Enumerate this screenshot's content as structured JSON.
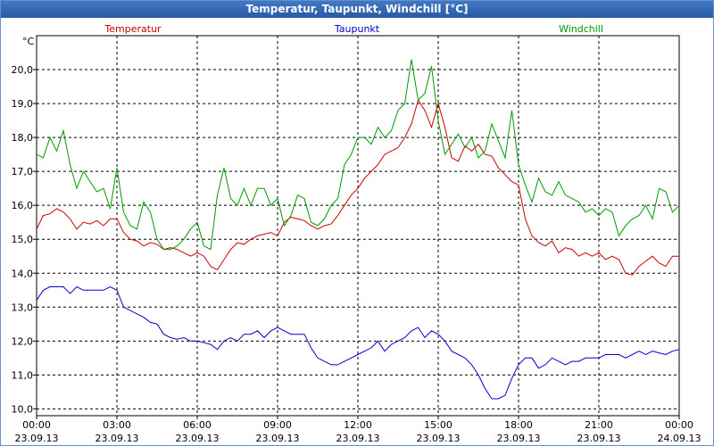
{
  "window": {
    "title": "Temperatur, Taupunkt, Windchill [°C]"
  },
  "chart_data": {
    "type": "line",
    "title": "Temperatur, Taupunkt, Windchill [°C]",
    "ylabel": "°C",
    "ylim": [
      9.8,
      21.0
    ],
    "xlim": [
      0,
      24
    ],
    "y_ticks": [
      10.0,
      11.0,
      12.0,
      13.0,
      14.0,
      15.0,
      16.0,
      17.0,
      18.0,
      19.0,
      20.0
    ],
    "y_tick_labels": [
      "10,0",
      "11,0",
      "12,0",
      "13,0",
      "14,0",
      "15,0",
      "16,0",
      "17,0",
      "18,0",
      "19,0",
      "20,0"
    ],
    "x_ticks": [
      0,
      3,
      6,
      9,
      12,
      15,
      18,
      21,
      24
    ],
    "x_tick_labels": [
      {
        "time": "00:00",
        "date": "23.09.13"
      },
      {
        "time": "03:00",
        "date": "23.09.13"
      },
      {
        "time": "06:00",
        "date": "23.09.13"
      },
      {
        "time": "09:00",
        "date": "23.09.13"
      },
      {
        "time": "12:00",
        "date": "23.09.13"
      },
      {
        "time": "15:00",
        "date": "23.09.13"
      },
      {
        "time": "18:00",
        "date": "23.09.13"
      },
      {
        "time": "21:00",
        "date": "23.09.13"
      },
      {
        "time": "00:00",
        "date": "24.09.13"
      }
    ],
    "grid": true,
    "series": [
      {
        "name": "Temperatur",
        "color": "#cc0000",
        "x": [
          0.0,
          0.25,
          0.5,
          0.75,
          1.0,
          1.25,
          1.5,
          1.75,
          2.0,
          2.25,
          2.5,
          2.75,
          3.0,
          3.25,
          3.5,
          3.75,
          4.0,
          4.25,
          4.5,
          4.75,
          5.0,
          5.25,
          5.5,
          5.75,
          6.0,
          6.25,
          6.5,
          6.75,
          7.0,
          7.25,
          7.5,
          7.75,
          8.0,
          8.25,
          8.5,
          8.75,
          9.0,
          9.25,
          9.5,
          9.75,
          10.0,
          10.25,
          10.5,
          10.75,
          11.0,
          11.25,
          11.5,
          11.75,
          12.0,
          12.25,
          12.5,
          12.75,
          13.0,
          13.25,
          13.5,
          13.75,
          14.0,
          14.25,
          14.5,
          14.75,
          15.0,
          15.25,
          15.5,
          15.75,
          16.0,
          16.25,
          16.5,
          16.75,
          17.0,
          17.25,
          17.5,
          17.75,
          18.0,
          18.25,
          18.5,
          18.75,
          19.0,
          19.25,
          19.5,
          19.75,
          20.0,
          20.25,
          20.5,
          20.75,
          21.0,
          21.25,
          21.5,
          21.75,
          22.0,
          22.25,
          22.5,
          22.75,
          23.0,
          23.25,
          23.5,
          23.75,
          24.0
        ],
        "values": [
          15.3,
          15.7,
          15.75,
          15.9,
          15.8,
          15.6,
          15.3,
          15.5,
          15.45,
          15.55,
          15.4,
          15.6,
          15.6,
          15.2,
          15.0,
          14.95,
          14.8,
          14.9,
          14.85,
          14.7,
          14.75,
          14.7,
          14.6,
          14.5,
          14.6,
          14.5,
          14.2,
          14.1,
          14.4,
          14.7,
          14.9,
          14.85,
          15.0,
          15.1,
          15.15,
          15.2,
          15.1,
          15.5,
          15.65,
          15.6,
          15.55,
          15.4,
          15.3,
          15.4,
          15.45,
          15.7,
          16.0,
          16.3,
          16.5,
          16.8,
          17.0,
          17.2,
          17.5,
          17.6,
          17.7,
          18.0,
          18.4,
          19.1,
          18.8,
          18.3,
          19.0,
          18.3,
          17.4,
          17.3,
          17.75,
          17.6,
          17.8,
          17.5,
          17.45,
          17.1,
          16.9,
          16.7,
          16.6,
          15.6,
          15.1,
          14.9,
          14.8,
          14.95,
          14.6,
          14.75,
          14.7,
          14.5,
          14.6,
          14.5,
          14.6,
          14.4,
          14.5,
          14.4,
          14.0,
          13.95,
          14.2,
          14.35,
          14.5,
          14.3,
          14.2,
          14.5,
          14.5
        ]
      },
      {
        "name": "Taupunkt",
        "color": "#0000cc",
        "x": [
          0.0,
          0.25,
          0.5,
          0.75,
          1.0,
          1.25,
          1.5,
          1.75,
          2.0,
          2.25,
          2.5,
          2.75,
          3.0,
          3.25,
          3.5,
          3.75,
          4.0,
          4.25,
          4.5,
          4.75,
          5.0,
          5.25,
          5.5,
          5.75,
          6.0,
          6.25,
          6.5,
          6.75,
          7.0,
          7.25,
          7.5,
          7.75,
          8.0,
          8.25,
          8.5,
          8.75,
          9.0,
          9.25,
          9.5,
          9.75,
          10.0,
          10.25,
          10.5,
          10.75,
          11.0,
          11.25,
          11.5,
          11.75,
          12.0,
          12.25,
          12.5,
          12.75,
          13.0,
          13.25,
          13.5,
          13.75,
          14.0,
          14.25,
          14.5,
          14.75,
          15.0,
          15.25,
          15.5,
          15.75,
          16.0,
          16.25,
          16.5,
          16.75,
          17.0,
          17.25,
          17.5,
          17.75,
          18.0,
          18.25,
          18.5,
          18.75,
          19.0,
          19.25,
          19.5,
          19.75,
          20.0,
          20.25,
          20.5,
          20.75,
          21.0,
          21.25,
          21.5,
          21.75,
          22.0,
          22.25,
          22.5,
          22.75,
          23.0,
          23.25,
          23.5,
          23.75,
          24.0
        ],
        "values": [
          13.2,
          13.5,
          13.6,
          13.6,
          13.6,
          13.4,
          13.6,
          13.5,
          13.5,
          13.5,
          13.5,
          13.6,
          13.5,
          13.0,
          12.9,
          12.8,
          12.7,
          12.55,
          12.5,
          12.2,
          12.1,
          12.05,
          12.1,
          12.0,
          12.0,
          11.95,
          11.9,
          11.75,
          12.0,
          12.1,
          12.0,
          12.2,
          12.2,
          12.3,
          12.1,
          12.3,
          12.4,
          12.3,
          12.2,
          12.2,
          12.2,
          11.8,
          11.5,
          11.4,
          11.3,
          11.3,
          11.4,
          11.5,
          11.6,
          11.7,
          11.8,
          12.0,
          11.7,
          11.9,
          12.0,
          12.1,
          12.3,
          12.4,
          12.1,
          12.3,
          12.2,
          12.0,
          11.7,
          11.6,
          11.5,
          11.3,
          11.0,
          10.6,
          10.3,
          10.3,
          10.4,
          10.9,
          11.3,
          11.5,
          11.5,
          11.2,
          11.3,
          11.5,
          11.4,
          11.3,
          11.4,
          11.4,
          11.5,
          11.5,
          11.5,
          11.6,
          11.6,
          11.6,
          11.5,
          11.6,
          11.7,
          11.6,
          11.7,
          11.65,
          11.6,
          11.7,
          11.75
        ]
      },
      {
        "name": "Windchill",
        "color": "#009900",
        "x": [
          0.0,
          0.25,
          0.5,
          0.75,
          1.0,
          1.25,
          1.5,
          1.75,
          2.0,
          2.25,
          2.5,
          2.75,
          3.0,
          3.25,
          3.5,
          3.75,
          4.0,
          4.25,
          4.5,
          4.75,
          5.0,
          5.25,
          5.5,
          5.75,
          6.0,
          6.25,
          6.5,
          6.75,
          7.0,
          7.25,
          7.5,
          7.75,
          8.0,
          8.25,
          8.5,
          8.75,
          9.0,
          9.25,
          9.5,
          9.75,
          10.0,
          10.25,
          10.5,
          10.75,
          11.0,
          11.25,
          11.5,
          11.75,
          12.0,
          12.25,
          12.5,
          12.75,
          13.0,
          13.25,
          13.5,
          13.75,
          14.0,
          14.25,
          14.5,
          14.75,
          15.0,
          15.25,
          15.5,
          15.75,
          16.0,
          16.25,
          16.5,
          16.75,
          17.0,
          17.25,
          17.5,
          17.75,
          18.0,
          18.25,
          18.5,
          18.75,
          19.0,
          19.25,
          19.5,
          19.75,
          20.0,
          20.25,
          20.5,
          20.75,
          21.0,
          21.25,
          21.5,
          21.75,
          22.0,
          22.25,
          22.5,
          22.75,
          23.0,
          23.25,
          23.5,
          23.75,
          24.0
        ],
        "values": [
          17.5,
          17.4,
          18.0,
          17.6,
          18.2,
          17.2,
          16.5,
          17.0,
          16.7,
          16.4,
          16.5,
          15.9,
          17.1,
          15.8,
          15.4,
          15.3,
          16.1,
          15.8,
          15.0,
          14.7,
          14.7,
          14.8,
          15.0,
          15.3,
          15.5,
          14.8,
          14.7,
          16.3,
          17.1,
          16.2,
          16.0,
          16.5,
          16.0,
          16.5,
          16.5,
          16.0,
          16.2,
          15.4,
          15.7,
          16.3,
          16.2,
          15.5,
          15.4,
          15.6,
          16.0,
          16.2,
          17.2,
          17.5,
          18.0,
          18.0,
          17.8,
          18.3,
          18.0,
          18.2,
          18.8,
          19.0,
          20.3,
          19.1,
          19.3,
          20.1,
          18.5,
          17.5,
          17.8,
          18.1,
          17.7,
          18.0,
          17.4,
          17.6,
          18.4,
          17.9,
          17.4,
          18.8,
          17.2,
          16.6,
          16.1,
          16.8,
          16.4,
          16.3,
          16.7,
          16.3,
          16.2,
          16.1,
          15.8,
          15.9,
          15.7,
          15.9,
          15.8,
          15.1,
          15.4,
          15.6,
          15.7,
          16.0,
          15.6,
          16.5,
          16.4,
          15.8,
          16.0
        ]
      }
    ]
  }
}
